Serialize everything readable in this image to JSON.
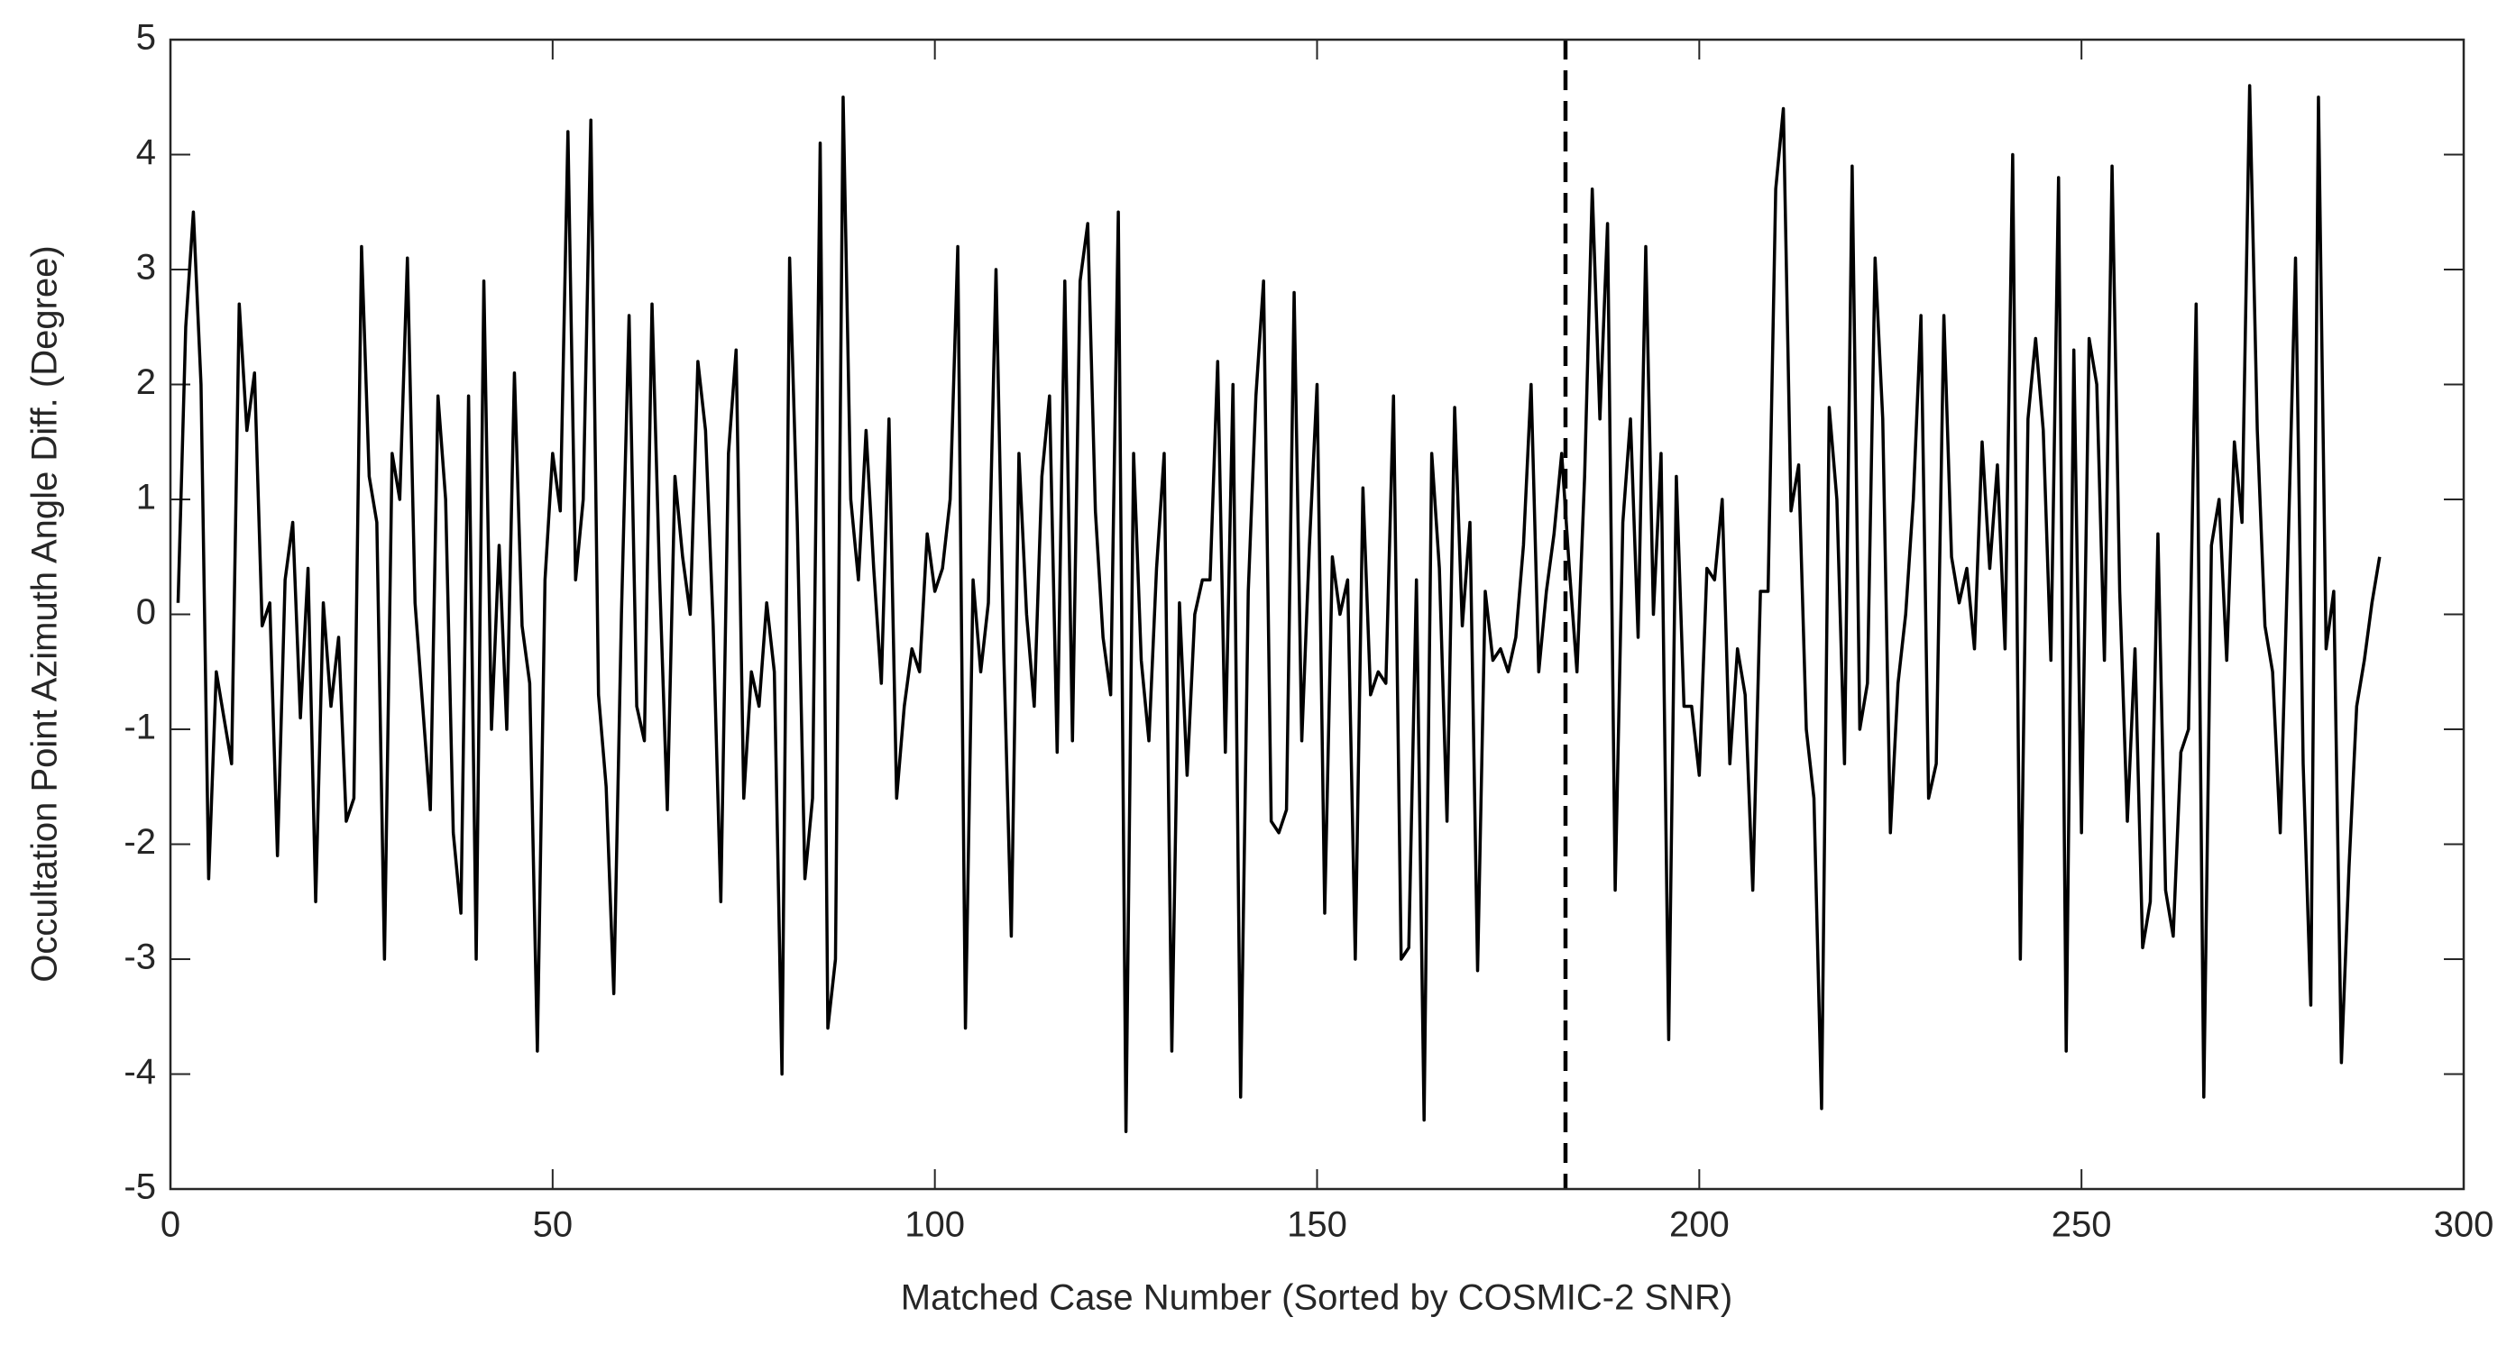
{
  "chart_data": {
    "type": "line",
    "xlabel": "Matched Case Number (Sorted by COSMIC-2 SNR)",
    "ylabel": "Occultation Point Azimuth Angle Diff. (Degree)",
    "xlim": [
      0,
      300
    ],
    "xticks": [
      0,
      50,
      100,
      150,
      200,
      250,
      300
    ],
    "ylim": [
      -5,
      5
    ],
    "yticks": [
      -5,
      -4,
      -3,
      -2,
      -1,
      0,
      1,
      2,
      3,
      4,
      5
    ],
    "grid": false,
    "divider_x": 182.5,
    "color": "#000000",
    "x": [
      1,
      2,
      3,
      4,
      5,
      6,
      7,
      8,
      9,
      10,
      11,
      12,
      13,
      14,
      15,
      16,
      17,
      18,
      19,
      20,
      21,
      22,
      23,
      24,
      25,
      26,
      27,
      28,
      29,
      30,
      31,
      32,
      33,
      34,
      35,
      36,
      37,
      38,
      39,
      40,
      41,
      42,
      43,
      44,
      45,
      46,
      47,
      48,
      49,
      50,
      51,
      52,
      53,
      54,
      55,
      56,
      57,
      58,
      59,
      60,
      61,
      62,
      63,
      64,
      65,
      66,
      67,
      68,
      69,
      70,
      71,
      72,
      73,
      74,
      75,
      76,
      77,
      78,
      79,
      80,
      81,
      82,
      83,
      84,
      85,
      86,
      87,
      88,
      89,
      90,
      91,
      92,
      93,
      94,
      95,
      96,
      97,
      98,
      99,
      100,
      101,
      102,
      103,
      104,
      105,
      106,
      107,
      108,
      109,
      110,
      111,
      112,
      113,
      114,
      115,
      116,
      117,
      118,
      119,
      120,
      121,
      122,
      123,
      124,
      125,
      126,
      127,
      128,
      129,
      130,
      131,
      132,
      133,
      134,
      135,
      136,
      137,
      138,
      139,
      140,
      141,
      142,
      143,
      144,
      145,
      146,
      147,
      148,
      149,
      150,
      151,
      152,
      153,
      154,
      155,
      156,
      157,
      158,
      159,
      160,
      161,
      162,
      163,
      164,
      165,
      166,
      167,
      168,
      169,
      170,
      171,
      172,
      173,
      174,
      175,
      176,
      177,
      178,
      179,
      180,
      181,
      182,
      183,
      184,
      185,
      186,
      187,
      188,
      189,
      190,
      191,
      192,
      193,
      194,
      195,
      196,
      197,
      198,
      199,
      200,
      201,
      202,
      203,
      204,
      205,
      206,
      207,
      208,
      209,
      210,
      211,
      212,
      213,
      214,
      215,
      216,
      217,
      218,
      219,
      220,
      221,
      222,
      223,
      224,
      225,
      226,
      227,
      228,
      229,
      230,
      231,
      232,
      233,
      234,
      235,
      236,
      237,
      238,
      239,
      240,
      241,
      242,
      243,
      244,
      245,
      246,
      247,
      248,
      249,
      250,
      251,
      252,
      253,
      254,
      255,
      256,
      257,
      258,
      259,
      260,
      261,
      262,
      263,
      264,
      265,
      266,
      267,
      268,
      269,
      270,
      271,
      272,
      273,
      274,
      275,
      276,
      277,
      278,
      279,
      280,
      281,
      282,
      283,
      284,
      285,
      286,
      287,
      288,
      289
    ],
    "values": [
      0.1,
      2.5,
      3.5,
      2.0,
      -2.3,
      -0.5,
      -0.9,
      -1.3,
      2.7,
      1.6,
      2.1,
      -0.1,
      0.1,
      -2.1,
      0.3,
      0.8,
      -0.9,
      0.4,
      -2.5,
      0.1,
      -0.8,
      -0.2,
      -1.8,
      -1.6,
      3.2,
      1.2,
      0.8,
      -3.0,
      1.4,
      1.0,
      3.1,
      0.1,
      -0.8,
      -1.7,
      1.9,
      1.0,
      -1.9,
      -2.6,
      1.9,
      -3.0,
      2.9,
      -1.0,
      0.6,
      -1.0,
      2.1,
      -0.1,
      -0.6,
      -3.8,
      0.3,
      1.4,
      0.9,
      4.2,
      0.3,
      1.0,
      4.3,
      -0.7,
      -1.5,
      -3.3,
      0.0,
      2.6,
      -0.8,
      -1.1,
      2.7,
      0.3,
      -1.7,
      1.2,
      0.5,
      0.0,
      2.2,
      1.6,
      -0.1,
      -2.5,
      1.4,
      2.3,
      -1.6,
      -0.5,
      -0.8,
      0.1,
      -0.5,
      -4.0,
      3.1,
      0.8,
      -2.3,
      -1.6,
      4.1,
      -3.6,
      -3.0,
      4.5,
      1.0,
      0.3,
      1.6,
      0.4,
      -0.6,
      1.7,
      -1.6,
      -0.8,
      -0.3,
      -0.5,
      0.7,
      0.2,
      0.4,
      1.0,
      3.2,
      -3.6,
      0.3,
      -0.5,
      0.1,
      3.0,
      -0.3,
      -2.8,
      1.4,
      0.0,
      -0.8,
      1.2,
      1.9,
      -1.2,
      2.9,
      -1.1,
      2.9,
      3.4,
      0.9,
      -0.2,
      -0.7,
      3.5,
      -4.5,
      1.4,
      -0.4,
      -1.1,
      0.4,
      1.4,
      -3.8,
      0.1,
      -1.4,
      0.0,
      0.3,
      0.3,
      2.2,
      -1.2,
      2.0,
      -4.2,
      0.2,
      1.9,
      2.9,
      -1.8,
      -1.9,
      -1.7,
      2.8,
      -1.1,
      0.6,
      2.0,
      -2.6,
      0.5,
      0.0,
      0.3,
      -3.0,
      1.1,
      -0.7,
      -0.5,
      -0.6,
      1.9,
      -3.0,
      -2.9,
      0.3,
      -4.4,
      1.4,
      0.4,
      -1.8,
      1.8,
      -0.1,
      0.8,
      -3.1,
      0.2,
      -0.4,
      -0.3,
      -0.5,
      -0.2,
      0.6,
      2.0,
      -0.5,
      0.2,
      0.7,
      1.4,
      0.4,
      -0.5,
      1.2,
      3.7,
      1.7,
      3.4,
      -2.4,
      0.8,
      1.7,
      -0.2,
      3.2,
      0.0,
      1.4,
      -3.7,
      1.2,
      -0.8,
      -0.8,
      -1.4,
      0.4,
      0.3,
      1.0,
      -1.3,
      -0.3,
      -0.7,
      -2.4,
      0.2,
      0.2,
      3.7,
      4.4,
      0.9,
      1.3,
      -1.0,
      -1.6,
      -4.3,
      1.8,
      1.0,
      -1.3,
      3.9,
      -1.0,
      -0.6,
      3.1,
      1.7,
      -1.9,
      -0.6,
      0.0,
      1.0,
      2.6,
      -1.6,
      -1.3,
      2.6,
      0.5,
      0.1,
      0.4,
      -0.3,
      1.5,
      0.4,
      1.3,
      -0.3,
      4.0,
      -3.0,
      1.7,
      2.4,
      1.6,
      -0.4,
      3.8,
      -3.8,
      2.3,
      -1.9,
      2.4,
      2.0,
      -0.4,
      3.9,
      0.2,
      -1.8,
      -0.3,
      -2.9,
      -2.5,
      0.7,
      -2.4,
      -2.8,
      -1.2,
      -1.0,
      2.7,
      -4.2,
      0.6,
      1.0,
      -0.4,
      1.5,
      0.8,
      4.6,
      1.6,
      -0.1,
      -0.5,
      -1.9,
      0.5,
      3.1,
      -1.3,
      -3.4,
      4.5,
      -0.3,
      0.2,
      -3.9,
      -2.2,
      -0.8,
      -0.4,
      0.1,
      0.5
    ]
  }
}
